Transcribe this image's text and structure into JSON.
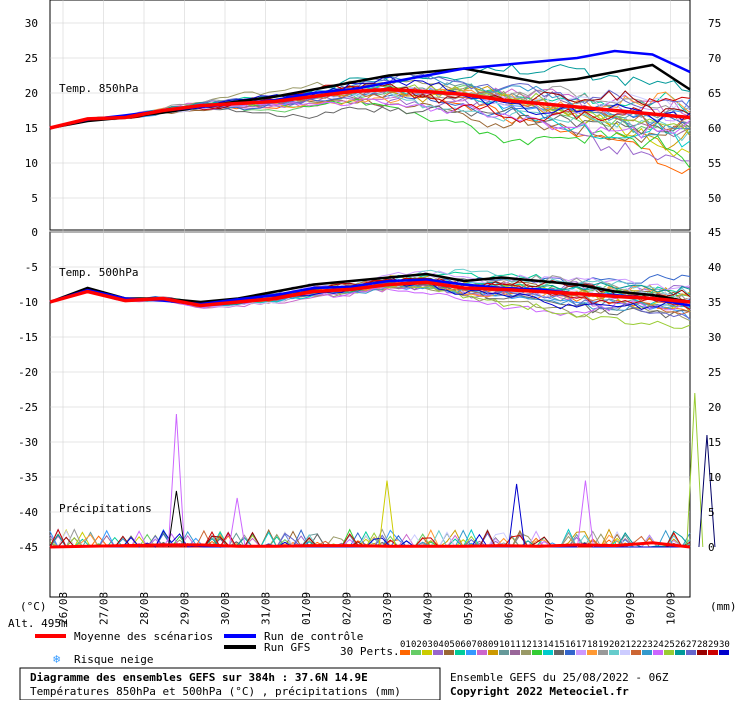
{
  "chart_data": {
    "type": "line",
    "title": "Diagramme des ensembles GEFS sur 384h : 37.6N 14.9E",
    "subtitle": "Températures 850hPa et 500hPa (°C) , précipitations (mm)",
    "run_info": "Ensemble GEFS du 25/08/2022 - 06Z",
    "copyright": "Copyright 2022 Meteociel.fr",
    "altitude": "Alt. 495m",
    "x_dates": [
      "26/08",
      "27/08",
      "28/08",
      "29/08",
      "30/08",
      "31/08",
      "01/09",
      "02/09",
      "03/09",
      "04/09",
      "05/09",
      "06/09",
      "07/09",
      "08/09",
      "09/09",
      "10/09"
    ],
    "left_axis_unit": "(°C)",
    "right_axis_unit": "(mm)",
    "left_ticks": [
      30,
      25,
      20,
      15,
      10,
      5,
      0,
      -5,
      -10,
      -15,
      -20,
      -25,
      -30,
      -35,
      -40,
      -45
    ],
    "right_ticks_top": [
      75,
      70,
      65,
      60,
      55,
      50
    ],
    "right_ticks_bottom": [
      45,
      40,
      35,
      30,
      25,
      20,
      15,
      10,
      5,
      0
    ],
    "panel_labels": {
      "t850": "Temp. 850hPa",
      "t500": "Temp. 500hPa",
      "precip": "Précipitations"
    },
    "legend": {
      "mean": "Moyenne des scénarios",
      "control": "Run de contrôle",
      "gfs": "Run GFS",
      "snow": "Risque neige",
      "perts": "30 Perts.",
      "pert_numbers": [
        "01",
        "02",
        "03",
        "04",
        "05",
        "06",
        "07",
        "08",
        "09",
        "10",
        "11",
        "12",
        "13",
        "14",
        "15",
        "16",
        "17",
        "18",
        "19",
        "20",
        "21",
        "22",
        "23",
        "24",
        "25",
        "26",
        "27",
        "28",
        "29",
        "30"
      ]
    },
    "colors": {
      "mean": "#ff0000",
      "control": "#0000ff",
      "gfs": "#000000",
      "perts": [
        "#ff6600",
        "#66cc66",
        "#cccc00",
        "#9966cc",
        "#996633",
        "#00cc99",
        "#3399ff",
        "#cc66cc",
        "#cc9900",
        "#669999",
        "#996699",
        "#999966",
        "#33cc33",
        "#00cccc",
        "#666666",
        "#3366cc",
        "#cc99ff",
        "#ff9933",
        "#999999",
        "#66cccc",
        "#ccccff",
        "#cc6633",
        "#3399cc",
        "#cc66ff",
        "#99cc33",
        "#009999",
        "#6666cc",
        "#990000",
        "#cc0000",
        "#0000cc"
      ]
    },
    "series_summary": {
      "t850_mean": [
        15,
        16.3,
        16.5,
        17.5,
        18.2,
        18.5,
        18.8,
        19.5,
        20.2,
        20.5,
        20.2,
        19.8,
        19.0,
        18.5,
        18.0,
        17.5,
        17.0,
        16.5
      ],
      "t850_control": [
        15,
        16.2,
        16.8,
        17.5,
        18.0,
        18.5,
        19.0,
        20.0,
        20.5,
        21.5,
        22.5,
        23.5,
        24.0,
        24.5,
        25.0,
        26.0,
        25.5,
        23.0
      ],
      "t850_gfs": [
        15,
        16.0,
        16.5,
        17.2,
        18.0,
        18.8,
        19.5,
        20.5,
        21.5,
        22.5,
        23.0,
        23.5,
        22.5,
        21.5,
        22.0,
        23.0,
        24.0,
        20.5
      ],
      "t500_mean": [
        -10,
        -8.5,
        -9.8,
        -9.5,
        -10.5,
        -10.0,
        -9.5,
        -8.5,
        -8.2,
        -7.5,
        -7.2,
        -8.0,
        -8.2,
        -8.5,
        -8.8,
        -9.2,
        -9.5,
        -10.0
      ],
      "t500_control": [
        -10,
        -8.3,
        -9.5,
        -9.8,
        -10.3,
        -9.6,
        -9.0,
        -8.0,
        -7.8,
        -7.0,
        -6.8,
        -7.5,
        -8.0,
        -8.2,
        -8.8,
        -9.0,
        -9.5,
        -10.5
      ],
      "t500_gfs": [
        -10,
        -8.0,
        -9.5,
        -9.5,
        -10.0,
        -9.5,
        -8.5,
        -7.5,
        -7.0,
        -6.5,
        -6.0,
        -7.0,
        -6.5,
        -7.0,
        -7.5,
        -8.5,
        -9.0,
        -10.0
      ],
      "precip_mean": [
        0,
        0.1,
        0.2,
        0.3,
        0.3,
        0.1,
        0.1,
        0.2,
        0.2,
        0.1,
        0.1,
        0.1,
        0.2,
        0.1,
        0.3,
        0.2,
        0.6,
        0
      ],
      "precip_peaks": [
        {
          "date_index": 2.8,
          "value": 19,
          "color": "#cc66ff"
        },
        {
          "date_index": 2.8,
          "value": 8,
          "color": "#000000"
        },
        {
          "date_index": 4.3,
          "value": 7,
          "color": "#cc66ff"
        },
        {
          "date_index": 8.0,
          "value": 9.5,
          "color": "#cccc00"
        },
        {
          "date_index": 11.2,
          "value": 9,
          "color": "#0000cc"
        },
        {
          "date_index": 12.9,
          "value": 9.5,
          "color": "#cc66ff"
        },
        {
          "date_index": 15.6,
          "value": 22,
          "color": "#99cc33"
        },
        {
          "date_index": 15.9,
          "value": 16,
          "color": "#000066"
        }
      ]
    },
    "ylim_left": [
      -45,
      30
    ],
    "ylim_right_top": [
      50,
      75
    ],
    "ylim_right_bottom": [
      0,
      45
    ]
  }
}
